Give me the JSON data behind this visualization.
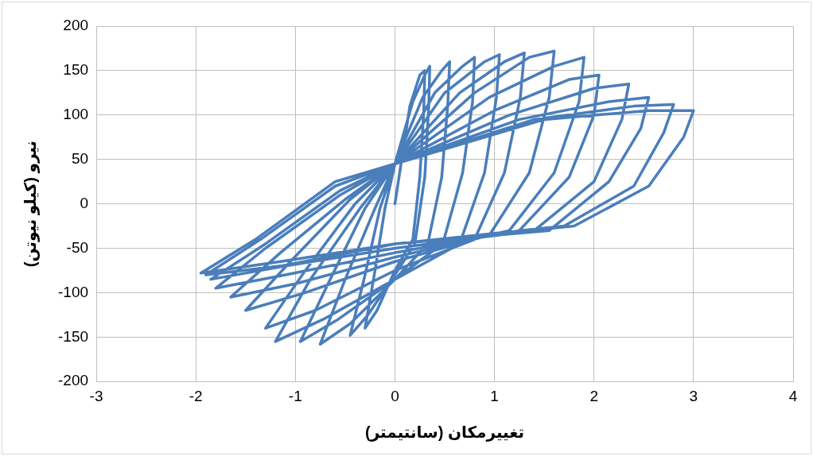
{
  "chart_data": {
    "type": "line",
    "xlabel": "تغییرمکان (سانتیمتر)",
    "ylabel": "نیرو (کیلو نیوتن)",
    "xlim": [
      -3,
      4
    ],
    "xticks": [
      -3,
      -2,
      -1,
      0,
      1,
      2,
      3,
      4
    ],
    "ylim": [
      -200,
      200
    ],
    "yticks": [
      -200,
      -150,
      -100,
      -50,
      0,
      50,
      100,
      150,
      200
    ],
    "grid": true,
    "legend": false,
    "marker": "none",
    "line_style": "solid",
    "color": "#4a7ebb",
    "x": [
      0,
      0.15,
      0.25,
      0.3,
      0.29,
      0.25,
      0.18,
      0,
      -0.18,
      -0.3,
      -0.2,
      -0.1,
      0,
      0.18,
      0.3,
      0.35,
      0.34,
      0.3,
      0.2,
      0,
      -0.27,
      -0.45,
      -0.3,
      -0.15,
      0,
      0.28,
      0.47,
      0.55,
      0.53,
      0.47,
      0.33,
      0,
      -0.45,
      -0.75,
      -0.5,
      -0.2,
      0,
      0.4,
      0.68,
      0.8,
      0.78,
      0.68,
      0.48,
      0,
      -0.57,
      -0.95,
      -0.65,
      -0.3,
      0,
      0.5,
      0.9,
      1.05,
      1.02,
      0.9,
      0.65,
      0,
      -0.72,
      -1.2,
      -0.85,
      -0.35,
      0,
      0.65,
      1.1,
      1.3,
      1.26,
      1.1,
      0.8,
      0,
      -0.8,
      -1.3,
      -0.9,
      -0.4,
      0,
      0.8,
      1.35,
      1.6,
      1.55,
      1.35,
      0.95,
      0,
      -0.9,
      -1.5,
      -1.05,
      -0.45,
      0,
      0.95,
      1.6,
      1.9,
      1.85,
      1.6,
      1.15,
      0,
      -1.0,
      -1.65,
      -1.15,
      -0.5,
      0,
      1.0,
      1.75,
      2.05,
      2.0,
      1.75,
      1.25,
      0,
      -1.1,
      -1.8,
      -1.3,
      -0.55,
      0,
      1.15,
      2.0,
      2.35,
      2.28,
      2.0,
      1.4,
      0,
      -1.1,
      -1.85,
      -1.3,
      -0.55,
      0,
      1.25,
      2.15,
      2.55,
      2.47,
      2.15,
      1.55,
      0,
      -1.15,
      -1.9,
      -1.35,
      -0.6,
      0,
      1.4,
      2.4,
      2.8,
      2.7,
      2.4,
      1.7,
      0,
      -1.15,
      -1.95,
      -1.4,
      -0.6,
      0,
      1.5,
      2.55,
      3.0,
      2.9,
      2.55,
      1.8,
      0
    ],
    "values": [
      0,
      110,
      145,
      150,
      105,
      30,
      -40,
      -75,
      -120,
      -140,
      -75,
      -5,
      45,
      115,
      145,
      155,
      110,
      30,
      -45,
      -80,
      -125,
      -148,
      -80,
      -5,
      45,
      120,
      150,
      160,
      110,
      30,
      -45,
      -85,
      -135,
      -158,
      -85,
      -5,
      45,
      125,
      155,
      165,
      115,
      35,
      -45,
      -85,
      -130,
      -155,
      -85,
      -5,
      45,
      125,
      160,
      168,
      120,
      35,
      -45,
      -85,
      -130,
      -155,
      -85,
      -5,
      45,
      125,
      160,
      170,
      120,
      35,
      -40,
      -75,
      -120,
      -140,
      -75,
      0,
      45,
      125,
      165,
      172,
      120,
      35,
      -35,
      -65,
      -100,
      -120,
      -65,
      5,
      45,
      120,
      155,
      165,
      115,
      35,
      -30,
      -60,
      -90,
      -105,
      -55,
      5,
      45,
      105,
      140,
      145,
      100,
      30,
      -30,
      -55,
      -80,
      -95,
      -50,
      10,
      45,
      100,
      130,
      135,
      95,
      25,
      -30,
      -50,
      -70,
      -85,
      -45,
      15,
      45,
      95,
      115,
      120,
      85,
      25,
      -30,
      -45,
      -70,
      -80,
      -40,
      20,
      45,
      95,
      110,
      112,
      80,
      20,
      -25,
      -45,
      -65,
      -78,
      -40,
      25,
      45,
      95,
      105,
      105,
      75,
      20,
      -25,
      -45
    ]
  }
}
